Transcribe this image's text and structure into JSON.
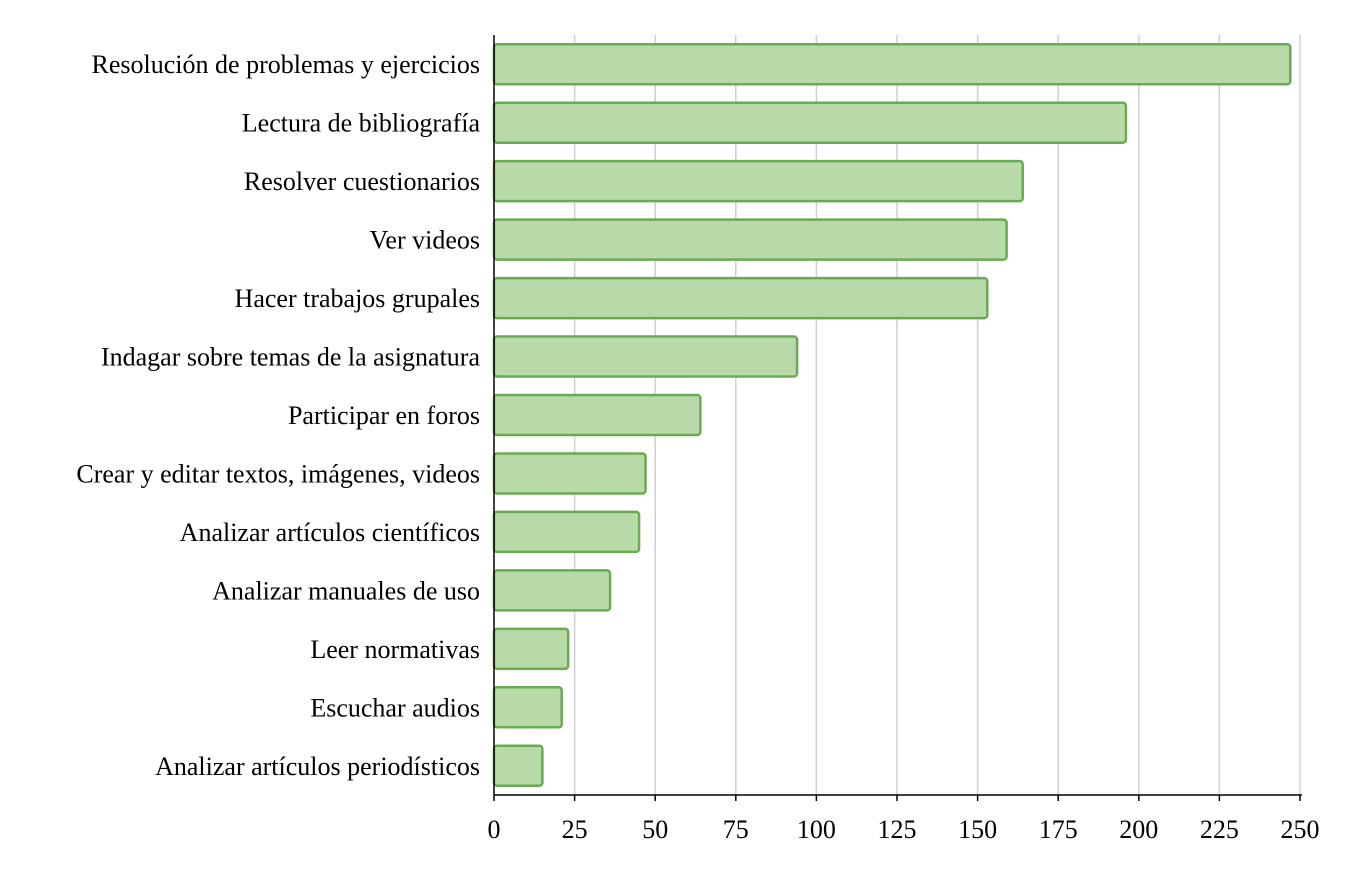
{
  "chart_data": {
    "type": "bar",
    "orientation": "horizontal",
    "title": "",
    "xlabel": "",
    "ylabel": "",
    "categories": [
      "Resolución de problemas y ejercicios",
      "Lectura de bibliografía",
      "Resolver cuestionarios",
      "Ver videos",
      "Hacer trabajos grupales",
      "Indagar sobre temas de la asignatura",
      "Participar en foros",
      "Crear y editar textos, imágenes, videos",
      "Analizar artículos científicos",
      "Analizar manuales de uso",
      "Leer normativas",
      "Escuchar audios",
      "Analizar artículos periodísticos"
    ],
    "values": [
      247,
      196,
      164,
      159,
      153,
      94,
      64,
      47,
      45,
      36,
      23,
      21,
      15
    ],
    "xlim": [
      0,
      250
    ],
    "xticks": [
      0,
      25,
      50,
      75,
      100,
      125,
      150,
      175,
      200,
      225,
      250
    ],
    "grid": "vertical",
    "legend": "none",
    "colors": {
      "bar_fill": "#b8daa8",
      "bar_stroke": "#6aaa55",
      "grid": "#d0d0d0",
      "axis": "#000000"
    }
  }
}
